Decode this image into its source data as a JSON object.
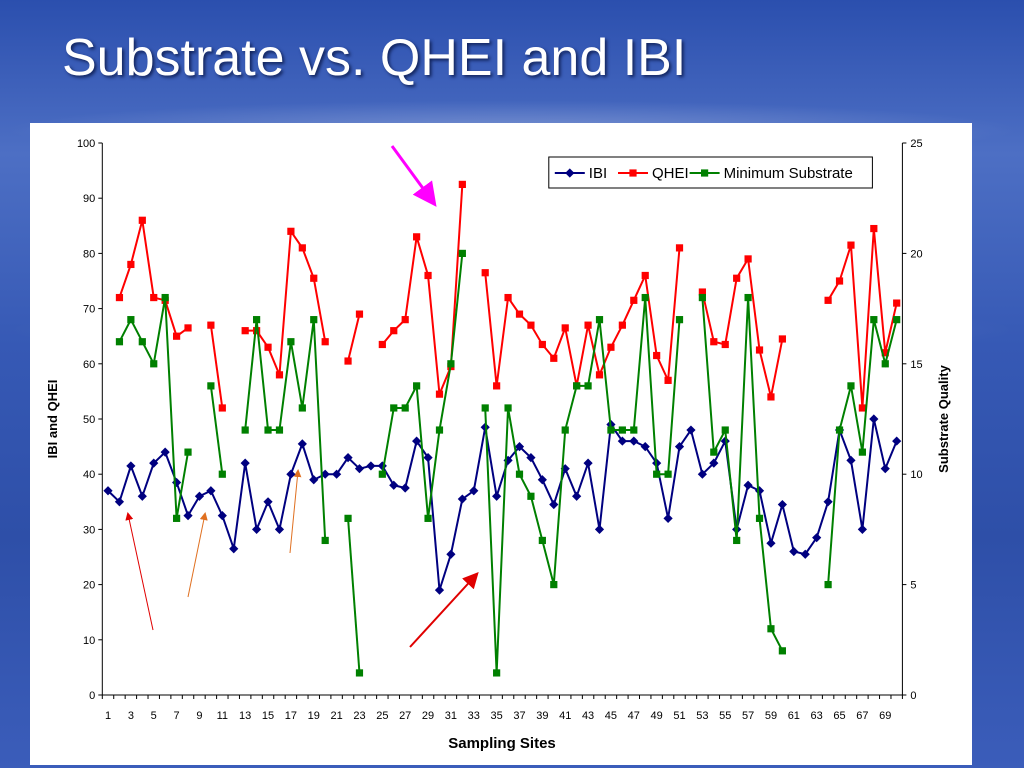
{
  "title": "Substrate vs. QHEI and IBI",
  "chart_data": {
    "type": "line",
    "xlabel": "Sampling Sites",
    "ylabel": "IBI and QHEI",
    "y2label": "Substrate Quality",
    "categories": [
      1,
      null,
      3,
      null,
      5,
      null,
      7,
      null,
      9,
      null,
      11,
      null,
      13,
      null,
      15,
      null,
      17,
      null,
      19,
      null,
      21,
      null,
      23,
      null,
      25,
      null,
      27,
      null,
      29,
      null,
      31,
      null,
      33,
      null,
      35,
      null,
      37,
      null,
      39,
      null,
      41,
      null,
      43,
      null,
      45,
      null,
      47,
      null,
      49,
      null,
      51,
      null,
      53,
      null,
      55,
      null,
      57,
      null,
      59,
      null,
      61,
      null,
      63,
      null,
      65,
      null,
      67,
      null,
      69,
      null
    ],
    "ylim": [
      0,
      100
    ],
    "yticks": [
      0,
      10,
      20,
      30,
      40,
      50,
      60,
      70,
      80,
      90,
      100
    ],
    "y2lim": [
      0,
      25
    ],
    "y2ticks": [
      0,
      5,
      10,
      15,
      20,
      25
    ],
    "legend": "upper right",
    "grid": false,
    "series": [
      {
        "name": "IBI",
        "color": "#000080",
        "marker": "diamond",
        "values": [
          37,
          35,
          41.5,
          36,
          42,
          44,
          38.5,
          32.5,
          36,
          37,
          32.5,
          26.5,
          42,
          30,
          35,
          30,
          40,
          45.5,
          39,
          40,
          40,
          43,
          41,
          41.5,
          41.5,
          38,
          37.5,
          46,
          43,
          19,
          25.5,
          35.5,
          37,
          48.5,
          36,
          42.5,
          45,
          43,
          39,
          34.5,
          41,
          36,
          42,
          30,
          49,
          46,
          46,
          45,
          42,
          32,
          45,
          48,
          40,
          42,
          46,
          30,
          38,
          37,
          27.5,
          34.5,
          26,
          25.5,
          28.5,
          35,
          48,
          42.5,
          30,
          50,
          41,
          46
        ]
      },
      {
        "name": "QHEI",
        "color": "#ff0000",
        "marker": "square",
        "values": [
          null,
          72,
          78,
          86,
          72,
          71.5,
          65,
          66.5,
          null,
          67,
          52,
          null,
          66,
          66,
          63,
          58,
          84,
          81,
          75.5,
          64,
          null,
          60.5,
          69,
          null,
          63.5,
          66,
          68,
          83,
          76,
          54.5,
          59.5,
          92.5,
          null,
          76.5,
          56,
          72,
          69,
          67,
          63.5,
          61,
          66.5,
          56,
          67,
          58,
          63,
          67,
          71.5,
          76,
          61.5,
          57,
          81,
          null,
          73,
          64,
          63.5,
          75.5,
          79,
          62.5,
          54,
          64.5,
          null,
          null,
          null,
          71.5,
          75,
          81.5,
          52,
          84.5,
          62,
          71
        ]
      },
      {
        "name": "Minimum Substrate",
        "color": "#008000",
        "marker": "square",
        "axis": "y2",
        "values": [
          null,
          16,
          17,
          16,
          15,
          18,
          8,
          11,
          null,
          14,
          10,
          null,
          12,
          17,
          12,
          12,
          16,
          13,
          17,
          7,
          null,
          8,
          1,
          null,
          10,
          13,
          13,
          14,
          8,
          12,
          15,
          20,
          null,
          13,
          1,
          13,
          10,
          9,
          7,
          5,
          12,
          14,
          14,
          17,
          12,
          12,
          12,
          18,
          10,
          10,
          17,
          null,
          18,
          11,
          12,
          7,
          18,
          8,
          3,
          2,
          null,
          null,
          null,
          5,
          12,
          14,
          11,
          17,
          15,
          17
        ]
      }
    ]
  }
}
